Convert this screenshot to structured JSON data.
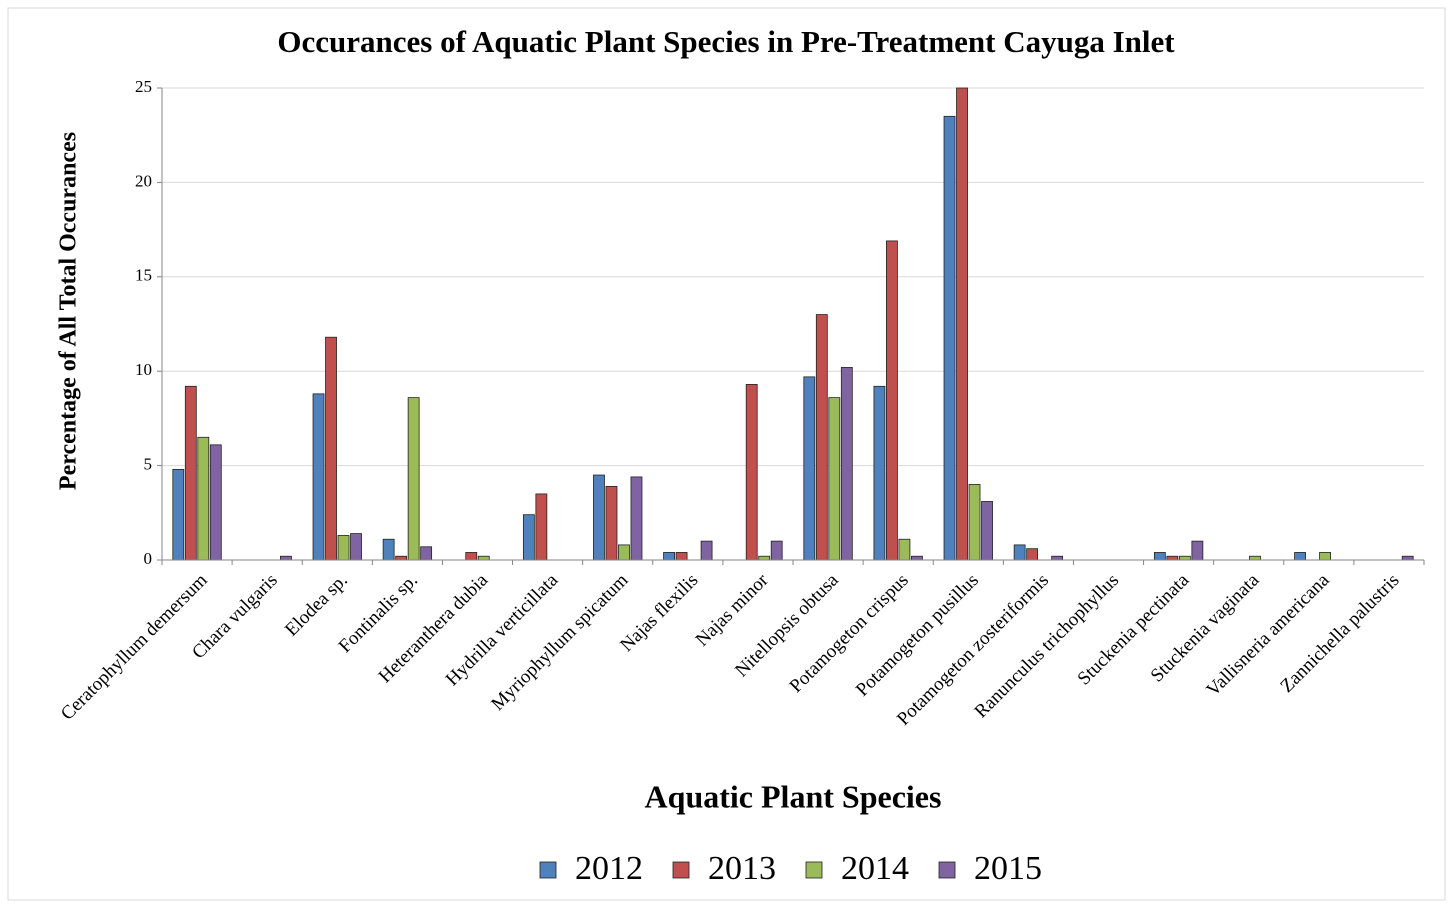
{
  "chart_data": {
    "type": "bar",
    "title": "Occurances of Aquatic Plant Species in Pre-Treatment Cayuga Inlet",
    "x_label": "Aquatic Plant Species",
    "y_label": "Percentage of All Total Occurances",
    "categories": [
      "Ceratophyllum demersum",
      "Chara vulgaris",
      "Elodea sp.",
      "Fontinalis sp.",
      "Heteranthera dubia",
      "Hydrilla verticillata",
      "Myriophyllum spicatum",
      "Najas flexilis",
      "Najas minor",
      "Nitellopsis obtusa",
      "Potamogeton crispus",
      "Potamogeton pusillus",
      "Potamogeton zosteriformis",
      "Ranunculus trichophyllus",
      "Stuckenia pectinata",
      "Stuckenia vaginata",
      "Vallisneria americana",
      "Zannichella palustris"
    ],
    "series": [
      {
        "name": "2012",
        "color": "#4f81bd",
        "values": [
          4.8,
          0,
          8.8,
          1.1,
          0,
          2.4,
          4.5,
          0.4,
          0,
          9.7,
          9.2,
          23.5,
          0.8,
          0,
          0.4,
          0,
          0.4,
          0
        ]
      },
      {
        "name": "2013",
        "color": "#c0504d",
        "values": [
          9.2,
          0,
          11.8,
          0.2,
          0.4,
          3.5,
          3.9,
          0.4,
          9.3,
          13.0,
          16.9,
          25,
          0.6,
          0,
          0.2,
          0,
          0,
          0
        ]
      },
      {
        "name": "2014",
        "color": "#9bbb59",
        "values": [
          6.5,
          0,
          1.3,
          8.6,
          0.2,
          0,
          0.8,
          0,
          0.2,
          8.6,
          1.1,
          4.0,
          0,
          0,
          0.2,
          0.2,
          0.4,
          0
        ]
      },
      {
        "name": "2015",
        "color": "#8064a2",
        "values": [
          6.1,
          0.2,
          1.4,
          0.7,
          0,
          0,
          4.4,
          1.0,
          1.0,
          10.2,
          0.2,
          3.1,
          0.2,
          0,
          1.0,
          0,
          0,
          0.2
        ]
      }
    ],
    "ylim": [
      0,
      25
    ],
    "yticks": [
      0,
      5,
      10,
      15,
      20,
      25
    ],
    "grid": true,
    "legend": "bottom"
  }
}
